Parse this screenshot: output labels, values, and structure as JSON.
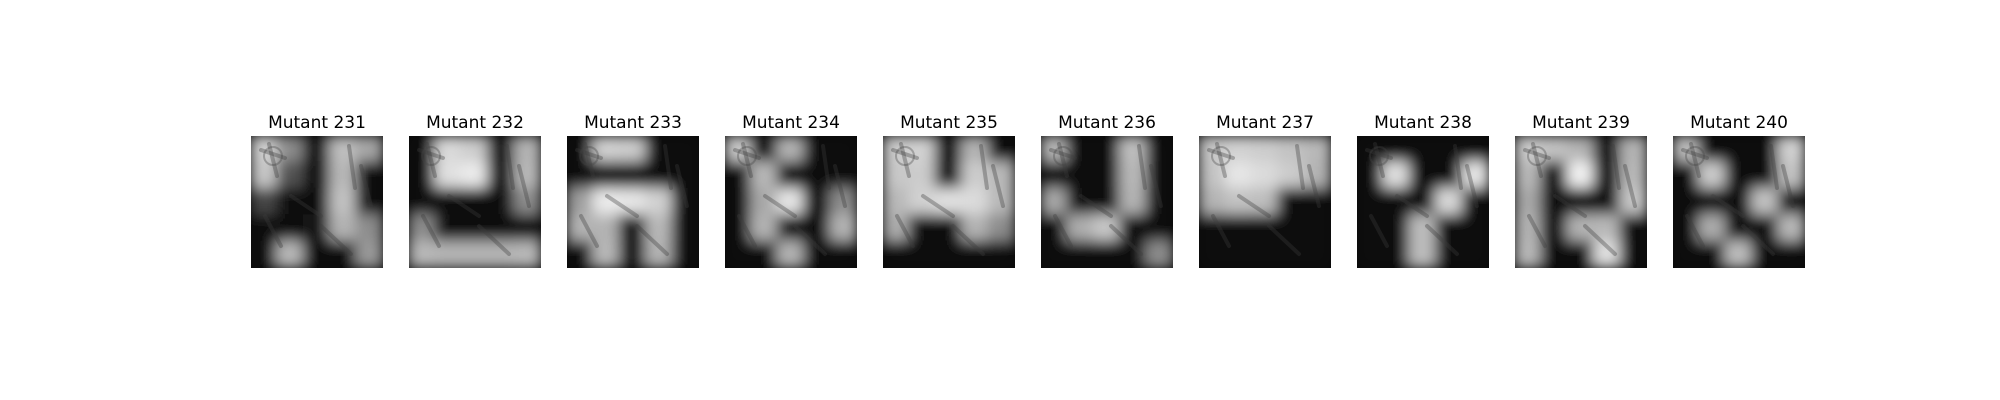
{
  "panels": [
    {
      "title": "Mutant 231",
      "mask": [
        [
          0.82,
          0.55,
          0.06,
          0.75,
          0.65
        ],
        [
          0.78,
          0.32,
          0.06,
          0.72,
          0.05
        ],
        [
          0.28,
          0.05,
          0.06,
          0.76,
          0.05
        ],
        [
          0.05,
          0.05,
          0.08,
          0.7,
          0.55
        ],
        [
          0.05,
          0.72,
          0.05,
          0.05,
          0.6
        ]
      ]
    },
    {
      "title": "Mutant 232",
      "mask": [
        [
          0.05,
          0.85,
          0.8,
          0.05,
          0.7
        ],
        [
          0.05,
          0.88,
          0.92,
          0.05,
          0.72
        ],
        [
          0.05,
          0.05,
          0.05,
          0.05,
          0.55
        ],
        [
          0.55,
          0.05,
          0.05,
          0.05,
          0.05
        ],
        [
          0.72,
          0.7,
          0.7,
          0.7,
          0.72
        ]
      ]
    },
    {
      "title": "Mutant 233",
      "mask": [
        [
          0.06,
          0.82,
          0.8,
          0.05,
          0.05
        ],
        [
          0.05,
          0.05,
          0.05,
          0.05,
          0.05
        ],
        [
          0.62,
          0.92,
          0.9,
          0.82,
          0.05
        ],
        [
          0.7,
          0.7,
          0.06,
          0.72,
          0.05
        ],
        [
          0.05,
          0.72,
          0.05,
          0.7,
          0.05
        ]
      ]
    },
    {
      "title": "Mutant 234",
      "mask": [
        [
          0.8,
          0.05,
          0.7,
          0.05,
          0.05
        ],
        [
          0.05,
          0.72,
          0.05,
          0.05,
          0.05
        ],
        [
          0.05,
          0.66,
          0.9,
          0.05,
          0.55
        ],
        [
          0.06,
          0.7,
          0.05,
          0.05,
          0.7
        ],
        [
          0.05,
          0.05,
          0.7,
          0.05,
          0.05
        ]
      ]
    },
    {
      "title": "Mutant 235",
      "mask": [
        [
          0.8,
          0.82,
          0.06,
          0.7,
          0.05
        ],
        [
          0.78,
          0.8,
          0.05,
          0.8,
          0.72
        ],
        [
          0.72,
          0.82,
          0.88,
          0.86,
          0.72
        ],
        [
          0.68,
          0.05,
          0.05,
          0.7,
          0.55
        ],
        [
          0.05,
          0.05,
          0.05,
          0.05,
          0.05
        ]
      ]
    },
    {
      "title": "Mutant 236",
      "mask": [
        [
          0.72,
          0.05,
          0.05,
          0.75,
          0.05
        ],
        [
          0.05,
          0.05,
          0.05,
          0.72,
          0.05
        ],
        [
          0.66,
          0.05,
          0.05,
          0.7,
          0.05
        ],
        [
          0.05,
          0.68,
          0.78,
          0.05,
          0.05
        ],
        [
          0.05,
          0.05,
          0.05,
          0.05,
          0.55
        ]
      ]
    },
    {
      "title": "Mutant 237",
      "mask": [
        [
          0.78,
          0.82,
          0.8,
          0.76,
          0.72
        ],
        [
          0.76,
          0.9,
          0.86,
          0.8,
          0.7
        ],
        [
          0.7,
          0.76,
          0.74,
          0.05,
          0.05
        ],
        [
          0.05,
          0.05,
          0.05,
          0.05,
          0.05
        ],
        [
          0.05,
          0.05,
          0.05,
          0.05,
          0.05
        ]
      ]
    },
    {
      "title": "Mutant 238",
      "mask": [
        [
          0.05,
          0.05,
          0.05,
          0.05,
          0.05
        ],
        [
          0.05,
          0.88,
          0.05,
          0.05,
          0.9
        ],
        [
          0.05,
          0.05,
          0.05,
          0.85,
          0.05
        ],
        [
          0.05,
          0.05,
          0.74,
          0.05,
          0.05
        ],
        [
          0.05,
          0.05,
          0.74,
          0.05,
          0.05
        ]
      ]
    },
    {
      "title": "Mutant 239",
      "mask": [
        [
          0.8,
          0.76,
          0.7,
          0.05,
          0.7
        ],
        [
          0.72,
          0.05,
          0.95,
          0.05,
          0.72
        ],
        [
          0.66,
          0.05,
          0.05,
          0.05,
          0.78
        ],
        [
          0.7,
          0.05,
          0.7,
          0.72,
          0.05
        ],
        [
          0.72,
          0.05,
          0.05,
          0.88,
          0.05
        ]
      ]
    },
    {
      "title": "Mutant 240",
      "mask": [
        [
          0.75,
          0.05,
          0.05,
          0.05,
          0.82
        ],
        [
          0.05,
          0.8,
          0.05,
          0.05,
          0.76
        ],
        [
          0.05,
          0.05,
          0.05,
          0.76,
          0.05
        ],
        [
          0.05,
          0.68,
          0.05,
          0.05,
          0.72
        ],
        [
          0.05,
          0.05,
          0.74,
          0.05,
          0.05
        ]
      ]
    }
  ]
}
